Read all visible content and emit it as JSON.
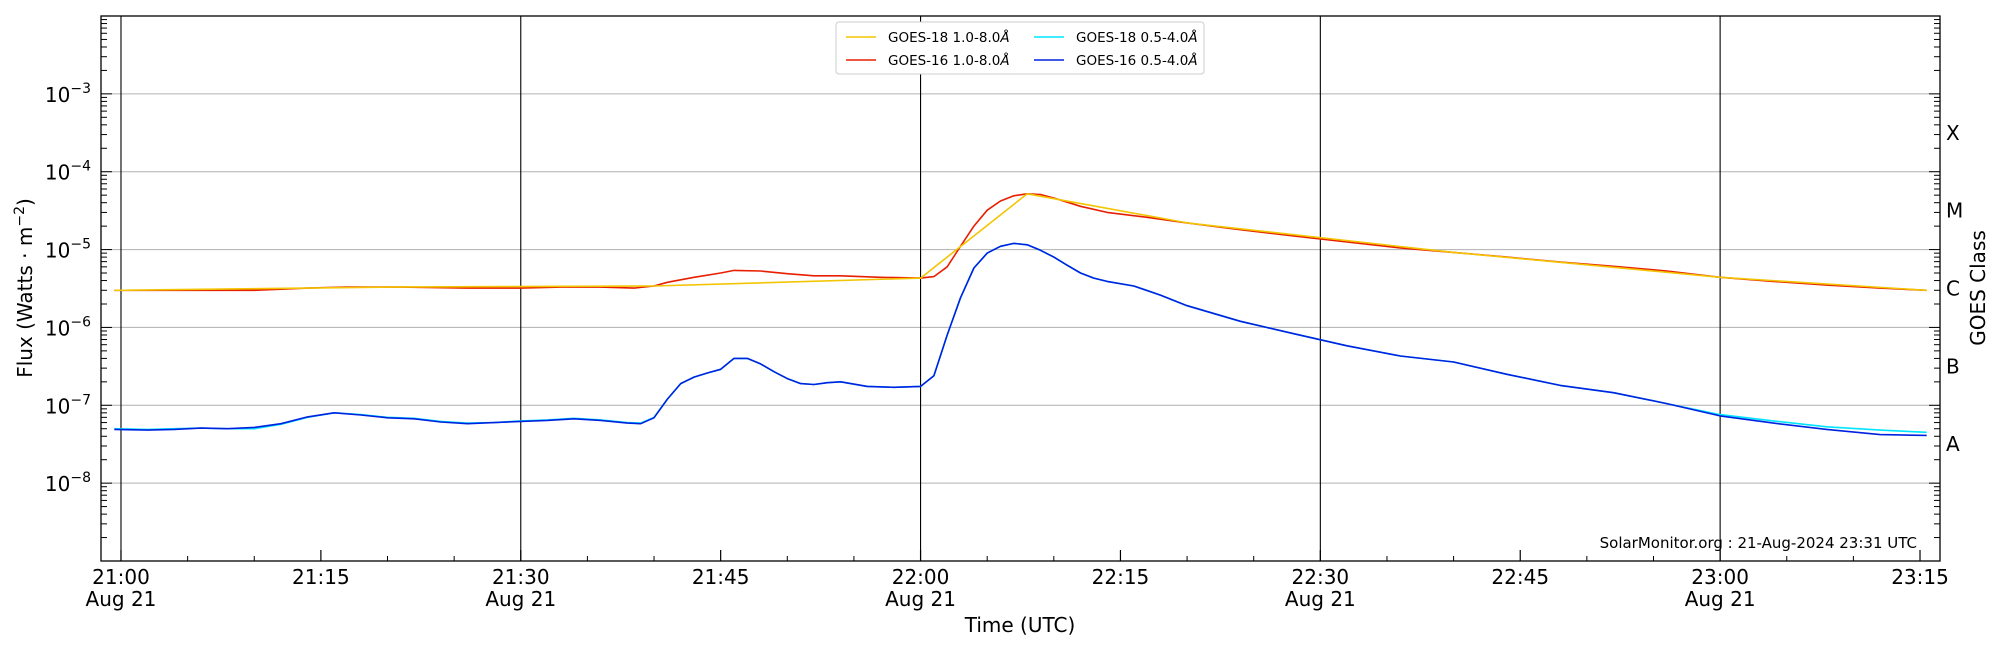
{
  "chart_data": {
    "type": "line",
    "xlabel": "Time (UTC)",
    "ylabel_main": "Flux (Watts · m",
    "ylabel_exp": "−2",
    "ylabel_close": ")",
    "ylabel_right": "GOES Class",
    "credit": "SolarMonitor.org : 21-Aug-2024 23:31 UTC",
    "y_scale": "log",
    "ylim": [
      1e-09,
      0.01
    ],
    "xlim_minutes": [
      -1.5,
      136.5
    ],
    "x_ticks": [
      {
        "minute": 0,
        "time": "21:00",
        "date": "Aug 21"
      },
      {
        "minute": 15,
        "time": "21:15",
        "date": ""
      },
      {
        "minute": 30,
        "time": "21:30",
        "date": "Aug 21"
      },
      {
        "minute": 45,
        "time": "21:45",
        "date": ""
      },
      {
        "minute": 60,
        "time": "22:00",
        "date": "Aug 21"
      },
      {
        "minute": 75,
        "time": "22:15",
        "date": ""
      },
      {
        "minute": 90,
        "time": "22:30",
        "date": "Aug 21"
      },
      {
        "minute": 105,
        "time": "22:45",
        "date": ""
      },
      {
        "minute": 120,
        "time": "23:00",
        "date": "Aug 21"
      },
      {
        "minute": 135,
        "time": "23:15",
        "date": ""
      }
    ],
    "y_ticks": [
      {
        "value": 1e-08,
        "base": "10",
        "exp": "−8"
      },
      {
        "value": 1e-07,
        "base": "10",
        "exp": "−7"
      },
      {
        "value": 1e-06,
        "base": "10",
        "exp": "−6"
      },
      {
        "value": 1e-05,
        "base": "10",
        "exp": "−5"
      },
      {
        "value": 0.0001,
        "base": "10",
        "exp": "−4"
      },
      {
        "value": 0.001,
        "base": "10",
        "exp": "−3"
      }
    ],
    "goes_classes": [
      {
        "label": "A",
        "value": 1e-08
      },
      {
        "label": "B",
        "value": 1e-07
      },
      {
        "label": "C",
        "value": 1e-06
      },
      {
        "label": "M",
        "value": 1e-05
      },
      {
        "label": "X",
        "value": 0.0001
      }
    ],
    "vertical_lines_minutes": [
      0,
      30,
      60,
      90,
      120
    ],
    "grid": "horizontal at decades",
    "legend_position": "top-center",
    "legend": [
      {
        "series": "GOES-18 1.0-8.0",
        "color": "#f2c500"
      },
      {
        "series": "GOES-18 0.5-4.0",
        "color": "#00e5ff"
      },
      {
        "series": "GOES-16 1.0-8.0",
        "color": "#e81e00"
      },
      {
        "series": "GOES-16 0.5-4.0",
        "color": "#0022e0"
      }
    ],
    "legend_unit": "Å",
    "series": [
      {
        "name": "GOES-16 1.0-8.0",
        "color": "#e81e00",
        "x": [
          -0.5,
          5,
          10,
          14,
          17,
          21,
          26,
          30,
          33,
          36,
          38.5,
          40,
          41,
          43,
          45,
          46,
          48,
          50,
          52,
          54,
          57,
          60,
          61,
          62,
          63,
          64,
          65,
          66,
          67,
          68,
          69,
          70,
          72,
          74,
          77,
          80,
          84,
          88,
          92,
          96,
          100,
          104,
          108,
          112,
          116,
          120,
          124,
          128,
          132,
          135.5
        ],
        "y": [
          3e-06,
          3e-06,
          3e-06,
          3.2e-06,
          3.3e-06,
          3.3e-06,
          3.2e-06,
          3.2e-06,
          3.3e-06,
          3.3e-06,
          3.2e-06,
          3.4e-06,
          3.8e-06,
          4.4e-06,
          5e-06,
          5.4e-06,
          5.3e-06,
          4.9e-06,
          4.6e-06,
          4.6e-06,
          4.4e-06,
          4.3e-06,
          4.5e-06,
          6e-06,
          1.1e-05,
          2e-05,
          3.2e-05,
          4.2e-05,
          4.9e-05,
          5.2e-05,
          5.1e-05,
          4.6e-05,
          3.6e-05,
          3e-05,
          2.6e-05,
          2.2e-05,
          1.8e-05,
          1.5e-05,
          1.25e-05,
          1.05e-05,
          9.2e-06,
          8e-06,
          6.9e-06,
          6.1e-06,
          5.3e-06,
          4.4e-06,
          3.9e-06,
          3.5e-06,
          3.2e-06,
          3e-06
        ]
      },
      {
        "name": "GOES-18 1.0-8.0",
        "color": "#f2c500",
        "x": [
          -0.5,
          20,
          40,
          60,
          68,
          80,
          100,
          120,
          135.5
        ],
        "y": [
          3e-06,
          3.3e-06,
          3.4e-06,
          4.3e-06,
          5.2e-05,
          2.2e-05,
          9.2e-06,
          4.4e-06,
          3e-06
        ]
      },
      {
        "name": "GOES-18 0.5-4.0",
        "color": "#00e5ff",
        "x": [
          -0.5,
          2,
          4,
          6,
          8,
          10,
          12,
          14,
          16,
          18,
          20,
          22,
          24,
          26,
          28,
          30,
          32,
          34,
          36,
          38,
          39,
          40,
          41,
          42,
          43,
          44,
          45,
          46,
          47,
          48,
          49,
          50,
          51,
          52,
          53,
          54,
          56,
          58,
          60,
          61,
          62,
          63,
          64,
          65,
          66,
          67,
          68,
          69,
          70,
          71,
          72,
          73,
          74,
          76,
          78,
          80,
          84,
          88,
          92,
          96,
          100,
          104,
          108,
          112,
          116,
          120,
          124,
          128,
          132,
          135.5
        ],
        "y": [
          5e-08,
          4.9e-08,
          5e-08,
          5.1e-08,
          5e-08,
          5e-08,
          5.7e-08,
          7e-08,
          8e-08,
          7.6e-08,
          7e-08,
          6.8e-08,
          6.2e-08,
          5.9e-08,
          6e-08,
          6.3e-08,
          6.5e-08,
          6.8e-08,
          6.5e-08,
          6e-08,
          5.9e-08,
          7e-08,
          1.2e-07,
          1.9e-07,
          2.3e-07,
          2.6e-07,
          2.9e-07,
          4e-07,
          4e-07,
          3.4e-07,
          2.7e-07,
          2.2e-07,
          1.9e-07,
          1.85e-07,
          1.95e-07,
          2e-07,
          1.75e-07,
          1.7e-07,
          1.75e-07,
          2.4e-07,
          8e-07,
          2.4e-06,
          5.8e-06,
          9e-06,
          1.1e-05,
          1.2e-05,
          1.15e-05,
          9.8e-06,
          8e-06,
          6.3e-06,
          5e-06,
          4.3e-06,
          3.9e-06,
          3.4e-06,
          2.6e-06,
          1.9e-06,
          1.2e-06,
          8.3e-07,
          5.8e-07,
          4.3e-07,
          3.6e-07,
          2.5e-07,
          1.8e-07,
          1.45e-07,
          1.05e-07,
          7.6e-08,
          6.3e-08,
          5.3e-08,
          4.8e-08,
          4.5e-08
        ]
      },
      {
        "name": "GOES-16 0.5-4.0",
        "color": "#0022e0",
        "x": [
          -0.5,
          2,
          4,
          6,
          8,
          10,
          12,
          14,
          16,
          18,
          20,
          22,
          24,
          26,
          28,
          30,
          32,
          34,
          36,
          38,
          39,
          40,
          41,
          42,
          43,
          44,
          45,
          46,
          47,
          48,
          49,
          50,
          51,
          52,
          53,
          54,
          56,
          58,
          60,
          61,
          62,
          63,
          64,
          65,
          66,
          67,
          68,
          69,
          70,
          71,
          72,
          73,
          74,
          76,
          78,
          80,
          84,
          88,
          92,
          96,
          100,
          104,
          108,
          112,
          116,
          120,
          124,
          128,
          132,
          135.5
        ],
        "y": [
          4.9e-08,
          4.8e-08,
          4.9e-08,
          5.1e-08,
          5e-08,
          5.2e-08,
          5.8e-08,
          7.1e-08,
          8e-08,
          7.5e-08,
          6.9e-08,
          6.7e-08,
          6.1e-08,
          5.8e-08,
          6e-08,
          6.2e-08,
          6.4e-08,
          6.7e-08,
          6.4e-08,
          5.9e-08,
          5.8e-08,
          6.9e-08,
          1.2e-07,
          1.9e-07,
          2.3e-07,
          2.6e-07,
          2.9e-07,
          4e-07,
          4e-07,
          3.4e-07,
          2.7e-07,
          2.2e-07,
          1.9e-07,
          1.85e-07,
          1.95e-07,
          2e-07,
          1.75e-07,
          1.7e-07,
          1.75e-07,
          2.4e-07,
          8e-07,
          2.4e-06,
          5.8e-06,
          9e-06,
          1.1e-05,
          1.2e-05,
          1.15e-05,
          9.8e-06,
          8e-06,
          6.3e-06,
          5e-06,
          4.3e-06,
          3.9e-06,
          3.4e-06,
          2.6e-06,
          1.9e-06,
          1.2e-06,
          8.3e-07,
          5.8e-07,
          4.3e-07,
          3.6e-07,
          2.5e-07,
          1.8e-07,
          1.45e-07,
          1.05e-07,
          7.3e-08,
          5.9e-08,
          4.9e-08,
          4.2e-08,
          4.1e-08
        ]
      }
    ]
  }
}
